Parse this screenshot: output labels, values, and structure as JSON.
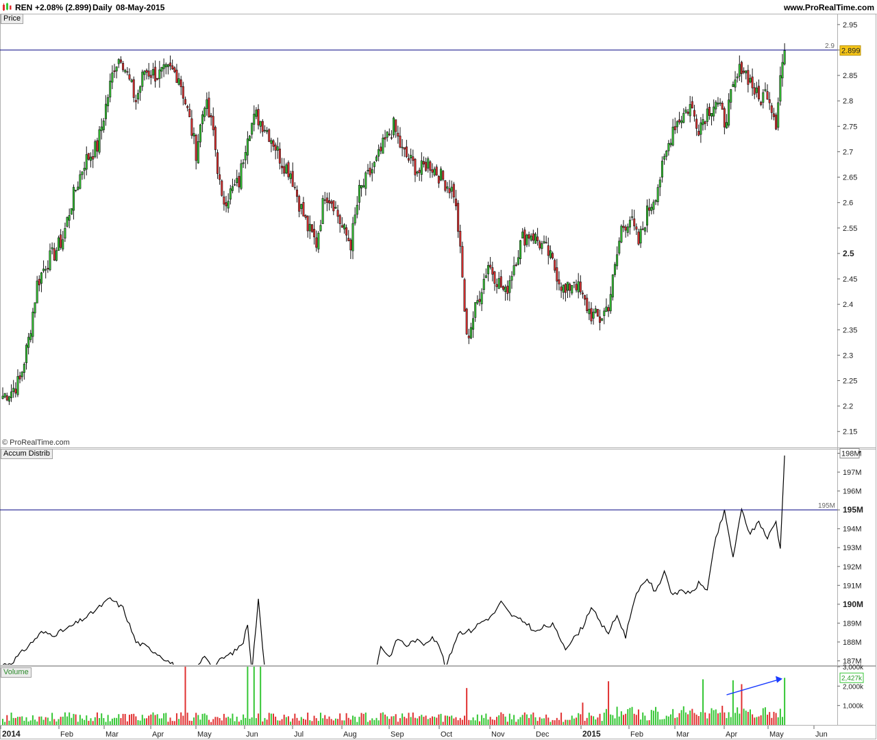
{
  "header": {
    "symbol": "REN",
    "change": "+2.08% (2.899)",
    "timeframe": "Daily",
    "date": "08-May-2015",
    "site": "www.ProRealTime.com",
    "colors": {
      "up": "#34c634",
      "down": "#e03030",
      "line": "#000080"
    }
  },
  "copyright": "© ProRealTime.com",
  "panels": {
    "price_label": "Price",
    "accum_label": "Accum Distrib",
    "volume_label": "Volume"
  },
  "chart_data": [
    {
      "type": "candlestick",
      "panel": "Price",
      "ylim": [
        2.12,
        2.97
      ],
      "yticks": [
        "2.95",
        "2.9",
        "2.85",
        "2.8",
        "2.75",
        "2.7",
        "2.65",
        "2.6",
        "2.55",
        "2.5",
        "2.45",
        "2.4",
        "2.35",
        "2.3",
        "2.25",
        "2.2",
        "2.15"
      ],
      "bold_ticks": [
        "2.5"
      ],
      "resistance_line": {
        "value": 2.9,
        "label": "2.9"
      },
      "last_value_label": "2.899",
      "x_labels": [
        "2014",
        "Feb",
        "Mar",
        "Apr",
        "May",
        "Jun",
        "Jul",
        "Aug",
        "Sep",
        "Oct",
        "Nov",
        "Dec",
        "2015",
        "Feb",
        "Mar",
        "Apr",
        "May",
        "Jun"
      ],
      "anchors": [
        [
          0,
          2.22
        ],
        [
          4,
          2.23
        ],
        [
          8,
          2.25
        ],
        [
          12,
          2.33
        ],
        [
          16,
          2.44
        ],
        [
          20,
          2.48
        ],
        [
          24,
          2.5
        ],
        [
          28,
          2.53
        ],
        [
          32,
          2.6
        ],
        [
          38,
          2.68
        ],
        [
          44,
          2.71
        ],
        [
          48,
          2.79
        ],
        [
          52,
          2.87
        ],
        [
          55,
          2.89
        ],
        [
          58,
          2.85
        ],
        [
          62,
          2.8
        ],
        [
          66,
          2.86
        ],
        [
          72,
          2.85
        ],
        [
          78,
          2.86
        ],
        [
          82,
          2.85
        ],
        [
          86,
          2.78
        ],
        [
          90,
          2.7
        ],
        [
          94,
          2.8
        ],
        [
          98,
          2.74
        ],
        [
          102,
          2.6
        ],
        [
          106,
          2.62
        ],
        [
          110,
          2.64
        ],
        [
          114,
          2.74
        ],
        [
          118,
          2.77
        ],
        [
          122,
          2.75
        ],
        [
          126,
          2.72
        ],
        [
          130,
          2.68
        ],
        [
          134,
          2.66
        ],
        [
          138,
          2.6
        ],
        [
          142,
          2.55
        ],
        [
          146,
          2.52
        ],
        [
          150,
          2.62
        ],
        [
          154,
          2.6
        ],
        [
          158,
          2.55
        ],
        [
          162,
          2.52
        ],
        [
          166,
          2.62
        ],
        [
          170,
          2.65
        ],
        [
          174,
          2.68
        ],
        [
          178,
          2.72
        ],
        [
          182,
          2.75
        ],
        [
          186,
          2.7
        ],
        [
          190,
          2.68
        ],
        [
          194,
          2.66
        ],
        [
          198,
          2.68
        ],
        [
          202,
          2.66
        ],
        [
          206,
          2.64
        ],
        [
          210,
          2.62
        ],
        [
          212,
          2.55
        ],
        [
          214,
          2.45
        ],
        [
          216,
          2.33
        ],
        [
          218,
          2.36
        ],
        [
          222,
          2.42
        ],
        [
          226,
          2.48
        ],
        [
          230,
          2.45
        ],
        [
          234,
          2.42
        ],
        [
          238,
          2.48
        ],
        [
          242,
          2.53
        ],
        [
          246,
          2.54
        ],
        [
          250,
          2.52
        ],
        [
          254,
          2.5
        ],
        [
          258,
          2.46
        ],
        [
          262,
          2.42
        ],
        [
          266,
          2.45
        ],
        [
          270,
          2.41
        ],
        [
          274,
          2.38
        ],
        [
          278,
          2.37
        ],
        [
          282,
          2.4
        ],
        [
          285,
          2.47
        ],
        [
          288,
          2.55
        ],
        [
          292,
          2.57
        ],
        [
          296,
          2.52
        ],
        [
          300,
          2.58
        ],
        [
          304,
          2.62
        ],
        [
          308,
          2.68
        ],
        [
          312,
          2.75
        ],
        [
          316,
          2.77
        ],
        [
          320,
          2.79
        ],
        [
          324,
          2.75
        ],
        [
          328,
          2.78
        ],
        [
          332,
          2.8
        ],
        [
          336,
          2.76
        ],
        [
          340,
          2.82
        ],
        [
          344,
          2.87
        ],
        [
          348,
          2.84
        ],
        [
          352,
          2.8
        ],
        [
          356,
          2.82
        ],
        [
          360,
          2.76
        ],
        [
          362,
          2.85
        ],
        [
          364,
          2.899
        ]
      ],
      "volume_spikes": [
        [
          85,
          3000000
        ],
        [
          114,
          3000000
        ],
        [
          117,
          3000000
        ],
        [
          120,
          3000000
        ],
        [
          216,
          1900000
        ],
        [
          270,
          1150000
        ],
        [
          282,
          2250000
        ],
        [
          326,
          2350000
        ],
        [
          340,
          2300000
        ],
        [
          344,
          2100000
        ],
        [
          364,
          2427000
        ]
      ]
    },
    {
      "type": "line",
      "panel": "Accum Distrib",
      "ylim": [
        186.8,
        198.2
      ],
      "yticks": [
        "198M",
        "197M",
        "196M",
        "195M",
        "194M",
        "193M",
        "192M",
        "191M",
        "190M",
        "189M",
        "188M",
        "187M"
      ],
      "bold_ticks": [
        "195M",
        "190M"
      ],
      "resistance_line": {
        "value": 195,
        "label": "195M"
      },
      "last_value_label": "198M",
      "anchors": [
        [
          0,
          186.8
        ],
        [
          4,
          186.9
        ],
        [
          12,
          187.8
        ],
        [
          18,
          188.5
        ],
        [
          24,
          188.4
        ],
        [
          30,
          188.7
        ],
        [
          40,
          189.4
        ],
        [
          50,
          190.3
        ],
        [
          56,
          189.8
        ],
        [
          62,
          188
        ],
        [
          66,
          187.8
        ],
        [
          72,
          187.4
        ],
        [
          78,
          186.9
        ],
        [
          82,
          186.6
        ],
        [
          90,
          186.5
        ],
        [
          94,
          187.3
        ],
        [
          98,
          186.7
        ],
        [
          102,
          187.1
        ],
        [
          108,
          187.5
        ],
        [
          112,
          188
        ],
        [
          114,
          189
        ],
        [
          116,
          186.5
        ],
        [
          119,
          190.2
        ],
        [
          122,
          186.6
        ],
        [
          130,
          186.6
        ],
        [
          174,
          186.6
        ],
        [
          176,
          187.8
        ],
        [
          180,
          187.2
        ],
        [
          184,
          188.2
        ],
        [
          188,
          187.8
        ],
        [
          192,
          188.1
        ],
        [
          196,
          187.9
        ],
        [
          200,
          188.3
        ],
        [
          204,
          187.6
        ],
        [
          206,
          186.6
        ],
        [
          208,
          187.2
        ],
        [
          212,
          188.5
        ],
        [
          218,
          188.6
        ],
        [
          222,
          189
        ],
        [
          228,
          189.4
        ],
        [
          232,
          190.1
        ],
        [
          236,
          189.5
        ],
        [
          240,
          189.2
        ],
        [
          244,
          189
        ],
        [
          248,
          188.5
        ],
        [
          252,
          188.8
        ],
        [
          256,
          188.9
        ],
        [
          262,
          187.7
        ],
        [
          266,
          188.2
        ],
        [
          270,
          188.8
        ],
        [
          274,
          189.9
        ],
        [
          278,
          189
        ],
        [
          282,
          188.5
        ],
        [
          286,
          189.4
        ],
        [
          290,
          188.3
        ],
        [
          294,
          190.3
        ],
        [
          300,
          191.4
        ],
        [
          304,
          190.6
        ],
        [
          308,
          191.8
        ],
        [
          312,
          190.4
        ],
        [
          316,
          190.8
        ],
        [
          320,
          190.5
        ],
        [
          324,
          191.1
        ],
        [
          328,
          190.8
        ],
        [
          332,
          193.5
        ],
        [
          336,
          194.9
        ],
        [
          340,
          192.5
        ],
        [
          344,
          195
        ],
        [
          348,
          193.7
        ],
        [
          352,
          194.4
        ],
        [
          356,
          193.5
        ],
        [
          360,
          194.4
        ],
        [
          362,
          192.9
        ],
        [
          364,
          198
        ]
      ]
    },
    {
      "type": "bar",
      "panel": "Volume",
      "ylim": [
        0,
        3000000
      ],
      "yticks": [
        "3,000k",
        "2,000k",
        "1,000k"
      ],
      "last_value_label": "2,427k"
    }
  ]
}
